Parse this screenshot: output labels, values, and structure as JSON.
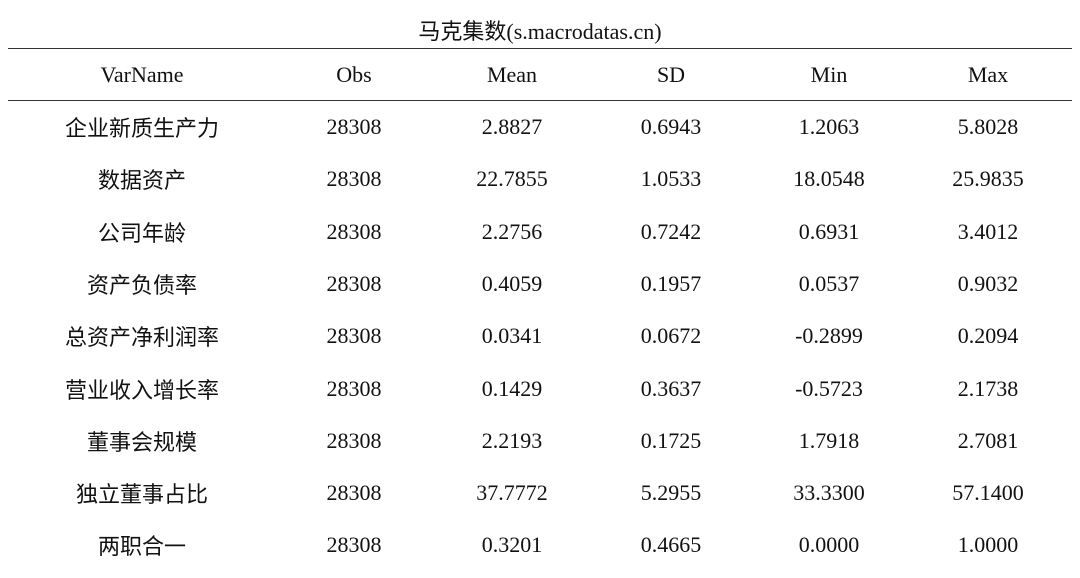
{
  "title": "马克集数(s.macrodatas.cn)",
  "table": {
    "header": [
      "VarName",
      "Obs",
      "Mean",
      "SD",
      "Min",
      "Max"
    ],
    "rows": [
      [
        "企业新质生产力",
        "28308",
        "2.8827",
        "0.6943",
        "1.2063",
        "5.8028"
      ],
      [
        "数据资产",
        "28308",
        "22.7855",
        "1.0533",
        "18.0548",
        "25.9835"
      ],
      [
        "公司年龄",
        "28308",
        "2.2756",
        "0.7242",
        "0.6931",
        "3.4012"
      ],
      [
        "资产负债率",
        "28308",
        "0.4059",
        "0.1957",
        "0.0537",
        "0.9032"
      ],
      [
        "总资产净利润率",
        "28308",
        "0.0341",
        "0.0672",
        "-0.2899",
        "0.2094"
      ],
      [
        "营业收入增长率",
        "28308",
        "0.1429",
        "0.3637",
        "-0.5723",
        "2.1738"
      ],
      [
        "董事会规模",
        "28308",
        "2.2193",
        "0.1725",
        "1.7918",
        "2.7081"
      ],
      [
        "独立董事占比",
        "28308",
        "37.7772",
        "5.2955",
        "33.3300",
        "57.1400"
      ],
      [
        "两职合一",
        "28308",
        "0.3201",
        "0.4665",
        "0.0000",
        "1.0000"
      ]
    ]
  }
}
